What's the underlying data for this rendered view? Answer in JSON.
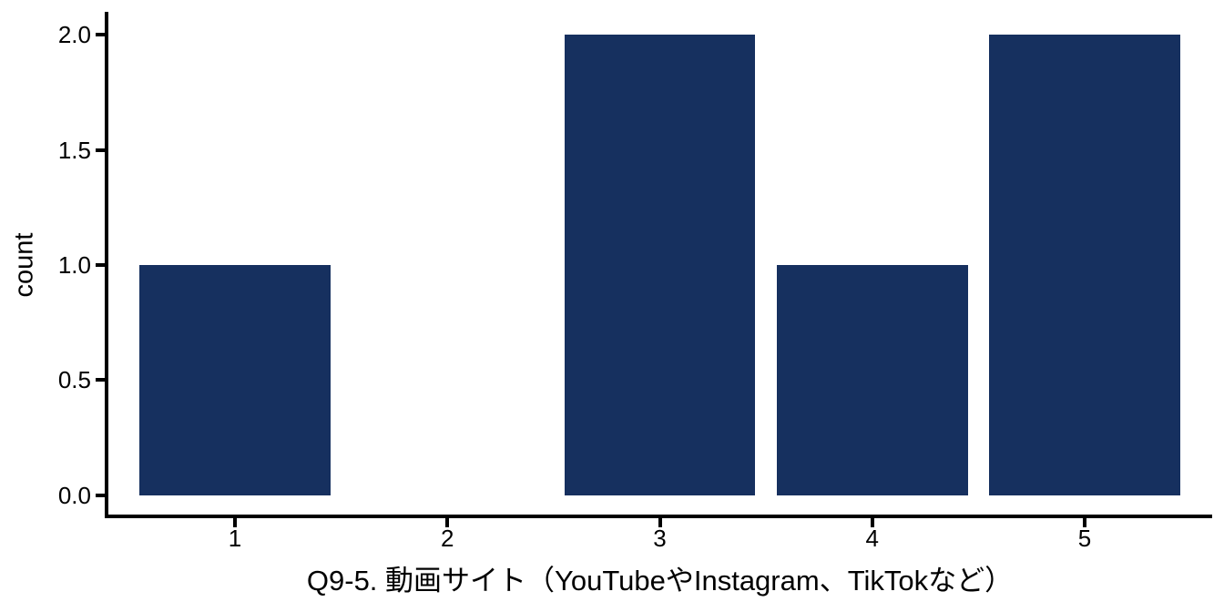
{
  "figure": {
    "background": "#ffffff"
  },
  "chart_data": {
    "type": "bar",
    "title": "",
    "xlabel": "Q9-5. 動画サイト（YouTubeやInstagram、TikTokなど）",
    "ylabel": "count",
    "categories": [
      "1",
      "2",
      "3",
      "4",
      "5"
    ],
    "x_positions": [
      1,
      2,
      3,
      4,
      5
    ],
    "values": [
      1,
      0,
      2,
      1,
      2
    ],
    "xlim": [
      0.4,
      5.6
    ],
    "ylim": [
      -0.1,
      2.1
    ],
    "yticks": [
      0.0,
      0.5,
      1.0,
      1.5,
      2.0
    ],
    "ytick_labels": [
      "0.0",
      "0.5",
      "1.0",
      "1.5",
      "2.0"
    ],
    "bar_width_units": 0.9,
    "bar_color": "#16305F",
    "axis_color": "#000000",
    "text_color": "#000000",
    "grid": false,
    "legend": "none"
  }
}
